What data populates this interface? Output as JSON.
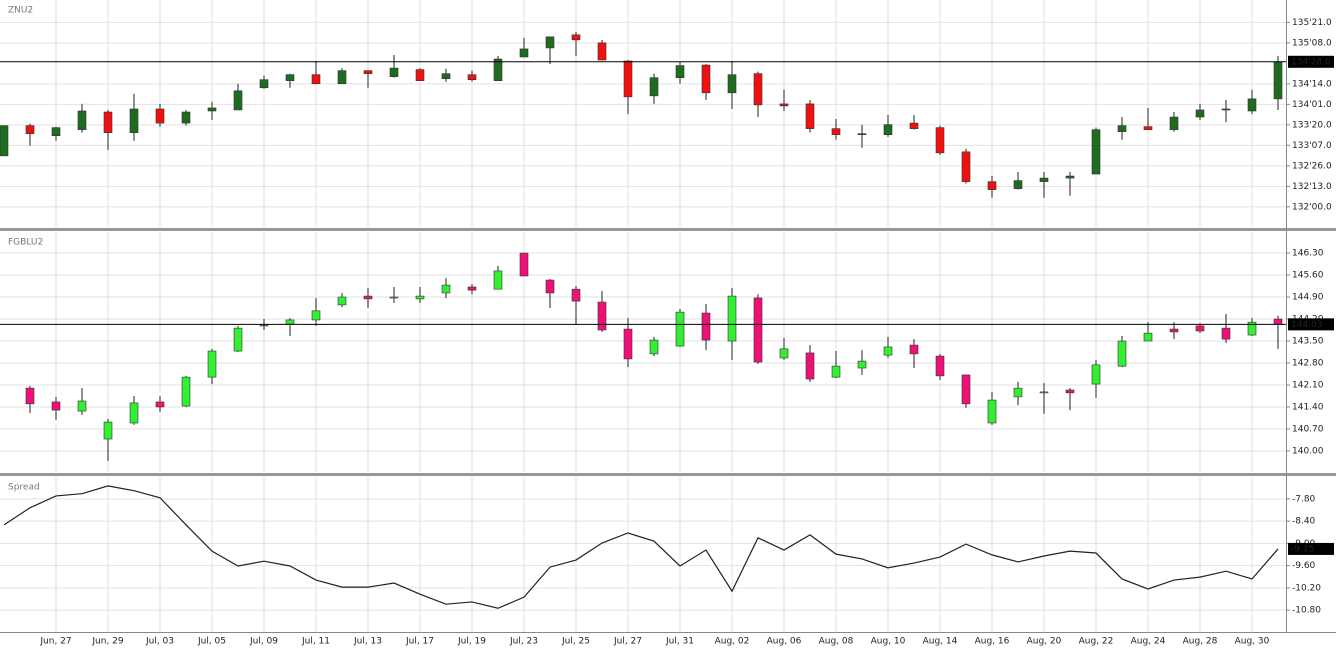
{
  "chart_data": [
    {
      "type": "candlestick",
      "title": "ZNU2",
      "up_color": "#1f6b1f",
      "down_color": "#ee1111",
      "grid": true,
      "last_line": true,
      "ylim": [
        131.6,
        136.1
      ],
      "yticks": [
        {
          "value": 135.65625,
          "label": "135'21.0"
        },
        {
          "value": 135.25,
          "label": "135'08.0"
        },
        {
          "value": 134.4375,
          "label": "134'14.0"
        },
        {
          "value": 134.03125,
          "label": "134'01.0"
        },
        {
          "value": 133.625,
          "label": "133'20.0"
        },
        {
          "value": 133.21875,
          "label": "133'07.0"
        },
        {
          "value": 132.8125,
          "label": "132'26.0"
        },
        {
          "value": 132.40625,
          "label": "132'13.0"
        },
        {
          "value": 132.0,
          "label": "132'00.0"
        }
      ],
      "last": {
        "value": 134.875,
        "label": "134'28.0"
      },
      "open": [
        133.01,
        133.61,
        133.41,
        133.53,
        133.88,
        133.47,
        133.94,
        133.66,
        133.9,
        133.92,
        134.36,
        134.5,
        134.62,
        134.44,
        134.7,
        134.58,
        134.72,
        134.54,
        134.62,
        134.5,
        134.97,
        135.15,
        135.41,
        135.25,
        134.89,
        134.2,
        134.56,
        134.81,
        134.26,
        134.64,
        134.04,
        134.04,
        133.55,
        133.43,
        133.43,
        133.66,
        133.57,
        133.09,
        132.5,
        132.36,
        132.5,
        132.57,
        132.65,
        133.49,
        133.59,
        133.53,
        133.78,
        133.92,
        133.9,
        134.14
      ],
      "high": [
        133.61,
        133.65,
        133.59,
        134.04,
        133.92,
        134.24,
        134.04,
        133.92,
        134.08,
        134.44,
        134.6,
        134.64,
        134.89,
        134.75,
        134.7,
        135.01,
        134.75,
        134.74,
        134.7,
        134.99,
        135.35,
        135.37,
        135.47,
        135.31,
        134.91,
        134.64,
        134.87,
        134.83,
        134.89,
        134.68,
        134.32,
        134.12,
        133.74,
        133.63,
        133.82,
        133.82,
        133.61,
        133.15,
        132.61,
        132.69,
        132.69,
        132.69,
        133.57,
        133.78,
        133.96,
        133.88,
        134.04,
        134.12,
        134.32,
        134.99
      ],
      "low": [
        133.01,
        133.21,
        133.31,
        133.47,
        133.13,
        133.31,
        133.59,
        133.61,
        133.72,
        133.92,
        134.34,
        134.36,
        134.44,
        134.44,
        134.36,
        134.56,
        134.5,
        134.48,
        134.48,
        134.5,
        134.97,
        134.83,
        134.99,
        134.91,
        133.84,
        134.04,
        134.44,
        134.12,
        133.94,
        133.78,
        133.9,
        133.47,
        133.33,
        133.17,
        133.39,
        133.53,
        133.03,
        132.46,
        132.18,
        132.34,
        132.18,
        132.22,
        132.65,
        133.33,
        133.53,
        133.49,
        133.72,
        133.68,
        133.84,
        133.92
      ],
      "close": [
        133.61,
        133.45,
        133.57,
        133.9,
        133.47,
        133.94,
        133.66,
        133.88,
        133.96,
        134.3,
        134.52,
        134.62,
        134.44,
        134.7,
        134.64,
        134.75,
        134.5,
        134.64,
        134.52,
        134.93,
        135.13,
        135.37,
        135.31,
        134.91,
        134.18,
        134.56,
        134.8,
        134.26,
        134.62,
        134.02,
        134.0,
        133.55,
        133.43,
        133.45,
        133.63,
        133.55,
        133.07,
        132.5,
        132.34,
        132.52,
        132.57,
        132.61,
        133.53,
        133.61,
        133.53,
        133.78,
        133.92,
        133.94,
        134.14,
        134.875
      ]
    },
    {
      "type": "candlestick",
      "title": "FGBLU2",
      "up_color": "#33ee33",
      "down_color": "#ee1177",
      "grid": true,
      "last_line": true,
      "ylim": [
        139.33,
        146.97
      ],
      "yticks": [
        {
          "value": 146.3,
          "label": "146.30"
        },
        {
          "value": 145.6,
          "label": "145.60"
        },
        {
          "value": 144.9,
          "label": "144.90"
        },
        {
          "value": 144.2,
          "label": "144.20"
        },
        {
          "value": 143.5,
          "label": "143.50"
        },
        {
          "value": 142.8,
          "label": "142.80"
        },
        {
          "value": 142.1,
          "label": "142.10"
        },
        {
          "value": 141.4,
          "label": "141.40"
        },
        {
          "value": 140.7,
          "label": "140.70"
        },
        {
          "value": 140.0,
          "label": "140.00"
        }
      ],
      "last": {
        "value": 144.03,
        "label": "144.03"
      },
      "open": [
        null,
        142.0,
        141.56,
        141.27,
        140.38,
        140.89,
        141.56,
        141.43,
        142.35,
        143.18,
        143.98,
        144.04,
        144.17,
        144.65,
        144.93,
        144.87,
        144.84,
        145.03,
        145.22,
        145.15,
        146.3,
        145.44,
        145.15,
        144.74,
        143.88,
        143.09,
        143.34,
        144.39,
        143.5,
        144.87,
        142.96,
        143.12,
        142.35,
        142.64,
        143.05,
        143.37,
        143.02,
        142.42,
        140.89,
        141.72,
        141.85,
        141.94,
        142.13,
        142.7,
        143.5,
        143.88,
        143.98,
        143.91,
        143.69,
        144.2
      ],
      "high": [
        null,
        142.07,
        141.72,
        142.0,
        141.02,
        141.75,
        141.75,
        142.39,
        143.25,
        143.98,
        144.2,
        144.23,
        144.87,
        145.03,
        145.19,
        145.22,
        145.22,
        145.5,
        145.31,
        145.89,
        146.3,
        145.47,
        145.25,
        145.09,
        144.23,
        143.63,
        144.52,
        144.68,
        145.19,
        144.99,
        143.6,
        143.37,
        143.18,
        143.21,
        143.63,
        143.56,
        143.09,
        142.42,
        141.88,
        142.2,
        142.16,
        142.0,
        142.9,
        143.66,
        144.1,
        144.1,
        144.07,
        144.36,
        144.23,
        144.3
      ],
      "low": [
        null,
        141.21,
        140.99,
        141.15,
        139.68,
        140.83,
        141.24,
        141.4,
        142.13,
        143.15,
        143.85,
        143.66,
        143.98,
        144.58,
        144.55,
        144.71,
        144.71,
        144.87,
        144.99,
        145.15,
        145.57,
        144.55,
        144.04,
        143.79,
        142.67,
        143.02,
        143.31,
        143.21,
        142.9,
        142.77,
        142.9,
        142.2,
        142.32,
        142.42,
        142.96,
        142.64,
        142.26,
        141.37,
        140.83,
        141.46,
        141.18,
        141.3,
        141.69,
        142.67,
        143.5,
        143.56,
        143.75,
        143.44,
        143.66,
        143.25
      ],
      "close": [
        null,
        141.5,
        141.3,
        141.59,
        140.92,
        141.53,
        141.4,
        142.35,
        143.18,
        143.91,
        144.01,
        144.17,
        144.46,
        144.9,
        144.84,
        144.9,
        144.93,
        145.28,
        145.12,
        145.73,
        145.57,
        145.03,
        144.77,
        143.85,
        142.93,
        143.53,
        144.42,
        143.53,
        144.93,
        142.83,
        143.25,
        142.29,
        142.7,
        142.86,
        143.31,
        143.09,
        142.39,
        141.5,
        141.62,
        142.0,
        141.88,
        141.85,
        142.74,
        143.5,
        143.75,
        143.79,
        143.82,
        143.56,
        144.1,
        144.03
      ]
    },
    {
      "type": "line",
      "title": "Spread",
      "color": "#222222",
      "grid": true,
      "last_line": false,
      "ylim": [
        -11.39,
        -7.21
      ],
      "yticks": [
        {
          "value": -7.8,
          "label": "-7.80"
        },
        {
          "value": -8.4,
          "label": "-8.40"
        },
        {
          "value": -9.0,
          "label": "-9.00"
        },
        {
          "value": -9.6,
          "label": "-9.60"
        },
        {
          "value": -10.2,
          "label": "-10.20"
        },
        {
          "value": -10.8,
          "label": "-10.80"
        }
      ],
      "last": {
        "value": -9.15,
        "label": "-9.15"
      },
      "categories": [
        null,
        null,
        "Jun, 27",
        null,
        "Jun, 29",
        null,
        "Jul, 03",
        null,
        "Jul, 05",
        null,
        "Jul, 09",
        null,
        "Jul, 11",
        null,
        "Jul, 13",
        null,
        "Jul, 17",
        null,
        "Jul, 19",
        null,
        "Jul, 23",
        null,
        "Jul, 25",
        null,
        "Jul, 27",
        null,
        "Jul, 31",
        null,
        "Aug, 02",
        null,
        "Aug, 06",
        null,
        "Aug, 08",
        null,
        "Aug, 10",
        null,
        "Aug, 14",
        null,
        "Aug, 16",
        null,
        "Aug, 20",
        null,
        "Aug, 22",
        null,
        "Aug, 24",
        null,
        "Aug, 28",
        null,
        "Aug, 30",
        null
      ],
      "values": [
        -8.5,
        -8.04,
        -7.72,
        -7.66,
        -7.45,
        -7.58,
        -7.77,
        -8.5,
        -9.21,
        -9.61,
        -9.48,
        -9.61,
        -9.99,
        -10.18,
        -10.18,
        -10.07,
        -10.37,
        -10.64,
        -10.58,
        -10.75,
        -10.45,
        -9.64,
        -9.45,
        -8.99,
        -8.72,
        -8.94,
        -9.61,
        -9.18,
        -10.29,
        -8.85,
        -9.18,
        -8.77,
        -9.29,
        -9.42,
        -9.66,
        -9.53,
        -9.37,
        -9.02,
        -9.31,
        -9.5,
        -9.34,
        -9.21,
        -9.26,
        -9.96,
        -10.23,
        -9.99,
        -9.91,
        -9.75,
        -9.96,
        -9.15
      ]
    }
  ]
}
